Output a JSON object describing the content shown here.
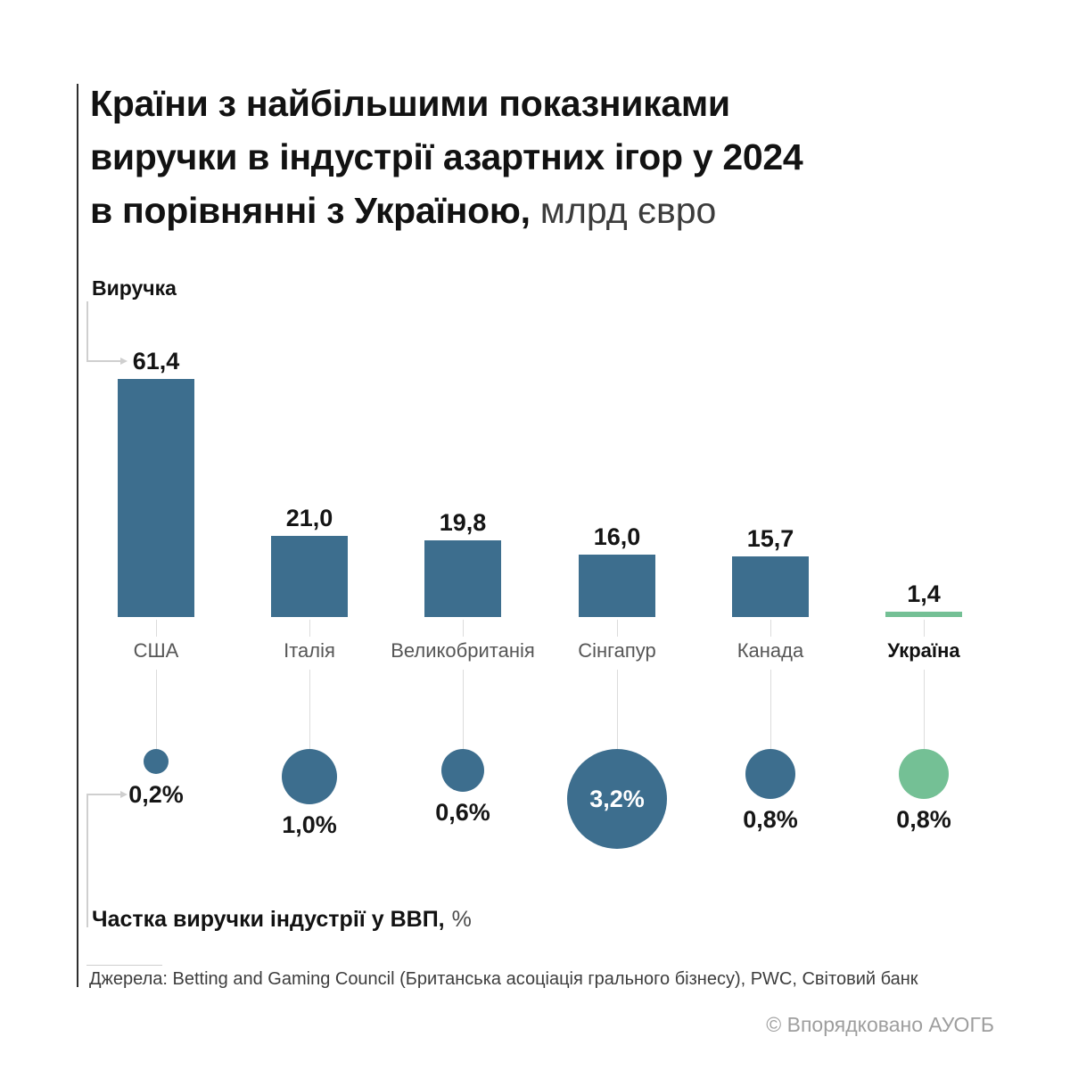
{
  "title": {
    "line1": "Країни з найбільшими показниками",
    "line2": "виручки в індустрії азартних ігор у 2024",
    "line3_bold": "в порівнянні з Україною,",
    "line3_light": "млрд євро"
  },
  "annotations": {
    "revenue_axis_label": "Виручка",
    "gdp_axis_label_bold": "Частка виручки індустрії у ВВП,",
    "gdp_axis_label_light": "%"
  },
  "footer": {
    "source": "Джерела: Betting and Gaming Council (Британська асоціація грального бізнесу), PWC, Світовий банк",
    "credit": "© Впорядковано АУОГБ"
  },
  "chart_data": {
    "type": "bar",
    "title": "Країни з найбільшими показниками виручки в індустрії азартних ігор у 2024 в порівнянні з Україною, млрд євро",
    "categories": [
      "США",
      "Італія",
      "Великобританія",
      "Сінгапур",
      "Канада",
      "Україна"
    ],
    "slugs": [
      "usa",
      "italy",
      "uk",
      "singapore",
      "canada",
      "ukraine"
    ],
    "series": [
      {
        "name": "Виручка, млрд євро",
        "display": "column",
        "values": [
          61.4,
          21.0,
          19.8,
          16.0,
          15.7,
          1.4
        ],
        "labels": [
          "61,4",
          "21,0",
          "19,8",
          "16,0",
          "15,7",
          "1,4"
        ]
      },
      {
        "name": "Частка виручки індустрії у ВВП, %",
        "display": "bubble-area-proportional",
        "values": [
          0.2,
          1.0,
          0.6,
          3.2,
          0.8,
          0.8
        ],
        "labels": [
          "0,2%",
          "1,0%",
          "0,6%",
          "3,2%",
          "0,8%",
          "0,8%"
        ],
        "label_inside_index": 3
      }
    ],
    "highlight_category": "Україна",
    "highlight_index": 5,
    "ylim": [
      0,
      65
    ],
    "grid": false,
    "legend_position": "none",
    "colors": {
      "primary": "#3d6e8e",
      "highlight": "#74c095",
      "connector": "#dcdcdc",
      "value_label": "#141414",
      "category_label": "#565656"
    }
  }
}
